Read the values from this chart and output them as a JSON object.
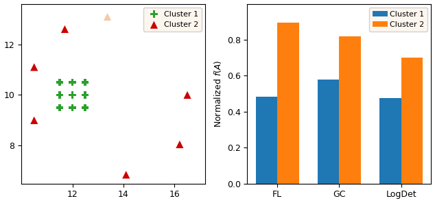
{
  "scatter": {
    "cluster1_x": [
      11.5,
      12.0,
      12.5,
      11.5,
      12.0,
      12.5,
      11.5,
      12.0,
      12.5
    ],
    "cluster1_y": [
      10.5,
      10.5,
      10.5,
      10.0,
      10.0,
      10.0,
      9.5,
      9.5,
      9.5
    ],
    "cluster1_color": "#2ca02c",
    "cluster1_marker": "P",
    "cluster1_size": 55,
    "cluster2_x": [
      10.5,
      10.5,
      11.7,
      14.1,
      16.2,
      16.5
    ],
    "cluster2_y": [
      11.1,
      9.0,
      12.6,
      6.85,
      8.05,
      10.0
    ],
    "cluster2_color": "#cc0000",
    "cluster2_marker": "^",
    "cluster2_size": 65,
    "ghost_x": [
      13.35
    ],
    "ghost_y": [
      13.1
    ],
    "ghost_color": "#f5c9a8",
    "ghost_marker": "^",
    "ghost_size": 65,
    "xlim": [
      10.0,
      17.2
    ],
    "ylim": [
      6.5,
      13.6
    ],
    "xticks": [
      12,
      14,
      16
    ],
    "yticks": [
      8,
      10,
      12
    ]
  },
  "bar": {
    "categories": [
      "FL",
      "GC",
      "LogDet"
    ],
    "cluster1_values": [
      0.485,
      0.577,
      0.475
    ],
    "cluster2_values": [
      0.895,
      0.82,
      0.7
    ],
    "cluster1_color": "#1f77b4",
    "cluster2_color": "#ff7f0e",
    "bar_width": 0.35,
    "ylim": [
      0,
      1.0
    ],
    "yticks": [
      0.0,
      0.2,
      0.4,
      0.6,
      0.8
    ],
    "ylabel": "Normalized $f(A)$"
  },
  "legend_cluster1": "Cluster 1",
  "legend_cluster2": "Cluster 2"
}
